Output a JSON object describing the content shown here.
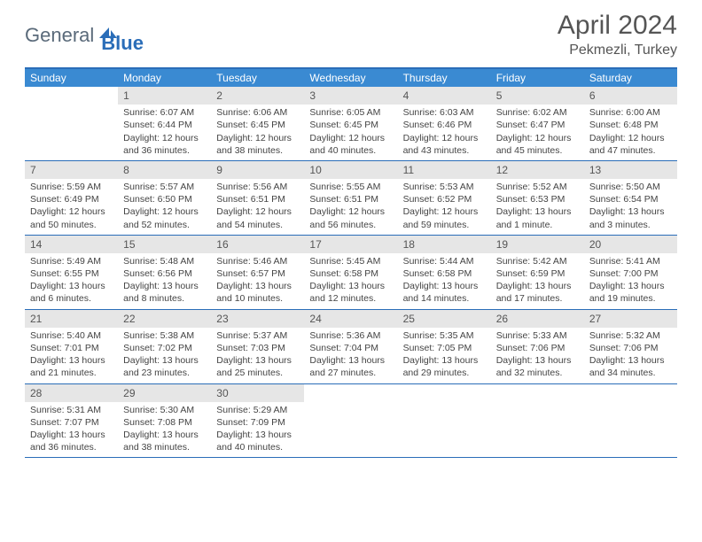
{
  "brand": {
    "part1": "General",
    "part2": "Blue",
    "color1": "#5a6a7a",
    "color2": "#2a6db8"
  },
  "title": "April 2024",
  "location": "Pekmezli, Turkey",
  "header_bg": "#3a8ad2",
  "border_color": "#2a6db8",
  "daynum_bg": "#e6e6e6",
  "text_color": "#444444",
  "day_names": [
    "Sunday",
    "Monday",
    "Tuesday",
    "Wednesday",
    "Thursday",
    "Friday",
    "Saturday"
  ],
  "weeks": [
    [
      null,
      {
        "n": "1",
        "sr": "6:07 AM",
        "ss": "6:44 PM",
        "dl": "12 hours and 36 minutes."
      },
      {
        "n": "2",
        "sr": "6:06 AM",
        "ss": "6:45 PM",
        "dl": "12 hours and 38 minutes."
      },
      {
        "n": "3",
        "sr": "6:05 AM",
        "ss": "6:45 PM",
        "dl": "12 hours and 40 minutes."
      },
      {
        "n": "4",
        "sr": "6:03 AM",
        "ss": "6:46 PM",
        "dl": "12 hours and 43 minutes."
      },
      {
        "n": "5",
        "sr": "6:02 AM",
        "ss": "6:47 PM",
        "dl": "12 hours and 45 minutes."
      },
      {
        "n": "6",
        "sr": "6:00 AM",
        "ss": "6:48 PM",
        "dl": "12 hours and 47 minutes."
      }
    ],
    [
      {
        "n": "7",
        "sr": "5:59 AM",
        "ss": "6:49 PM",
        "dl": "12 hours and 50 minutes."
      },
      {
        "n": "8",
        "sr": "5:57 AM",
        "ss": "6:50 PM",
        "dl": "12 hours and 52 minutes."
      },
      {
        "n": "9",
        "sr": "5:56 AM",
        "ss": "6:51 PM",
        "dl": "12 hours and 54 minutes."
      },
      {
        "n": "10",
        "sr": "5:55 AM",
        "ss": "6:51 PM",
        "dl": "12 hours and 56 minutes."
      },
      {
        "n": "11",
        "sr": "5:53 AM",
        "ss": "6:52 PM",
        "dl": "12 hours and 59 minutes."
      },
      {
        "n": "12",
        "sr": "5:52 AM",
        "ss": "6:53 PM",
        "dl": "13 hours and 1 minute."
      },
      {
        "n": "13",
        "sr": "5:50 AM",
        "ss": "6:54 PM",
        "dl": "13 hours and 3 minutes."
      }
    ],
    [
      {
        "n": "14",
        "sr": "5:49 AM",
        "ss": "6:55 PM",
        "dl": "13 hours and 6 minutes."
      },
      {
        "n": "15",
        "sr": "5:48 AM",
        "ss": "6:56 PM",
        "dl": "13 hours and 8 minutes."
      },
      {
        "n": "16",
        "sr": "5:46 AM",
        "ss": "6:57 PM",
        "dl": "13 hours and 10 minutes."
      },
      {
        "n": "17",
        "sr": "5:45 AM",
        "ss": "6:58 PM",
        "dl": "13 hours and 12 minutes."
      },
      {
        "n": "18",
        "sr": "5:44 AM",
        "ss": "6:58 PM",
        "dl": "13 hours and 14 minutes."
      },
      {
        "n": "19",
        "sr": "5:42 AM",
        "ss": "6:59 PM",
        "dl": "13 hours and 17 minutes."
      },
      {
        "n": "20",
        "sr": "5:41 AM",
        "ss": "7:00 PM",
        "dl": "13 hours and 19 minutes."
      }
    ],
    [
      {
        "n": "21",
        "sr": "5:40 AM",
        "ss": "7:01 PM",
        "dl": "13 hours and 21 minutes."
      },
      {
        "n": "22",
        "sr": "5:38 AM",
        "ss": "7:02 PM",
        "dl": "13 hours and 23 minutes."
      },
      {
        "n": "23",
        "sr": "5:37 AM",
        "ss": "7:03 PM",
        "dl": "13 hours and 25 minutes."
      },
      {
        "n": "24",
        "sr": "5:36 AM",
        "ss": "7:04 PM",
        "dl": "13 hours and 27 minutes."
      },
      {
        "n": "25",
        "sr": "5:35 AM",
        "ss": "7:05 PM",
        "dl": "13 hours and 29 minutes."
      },
      {
        "n": "26",
        "sr": "5:33 AM",
        "ss": "7:06 PM",
        "dl": "13 hours and 32 minutes."
      },
      {
        "n": "27",
        "sr": "5:32 AM",
        "ss": "7:06 PM",
        "dl": "13 hours and 34 minutes."
      }
    ],
    [
      {
        "n": "28",
        "sr": "5:31 AM",
        "ss": "7:07 PM",
        "dl": "13 hours and 36 minutes."
      },
      {
        "n": "29",
        "sr": "5:30 AM",
        "ss": "7:08 PM",
        "dl": "13 hours and 38 minutes."
      },
      {
        "n": "30",
        "sr": "5:29 AM",
        "ss": "7:09 PM",
        "dl": "13 hours and 40 minutes."
      },
      null,
      null,
      null,
      null
    ]
  ],
  "labels": {
    "sunrise": "Sunrise:",
    "sunset": "Sunset:",
    "daylight": "Daylight:"
  }
}
